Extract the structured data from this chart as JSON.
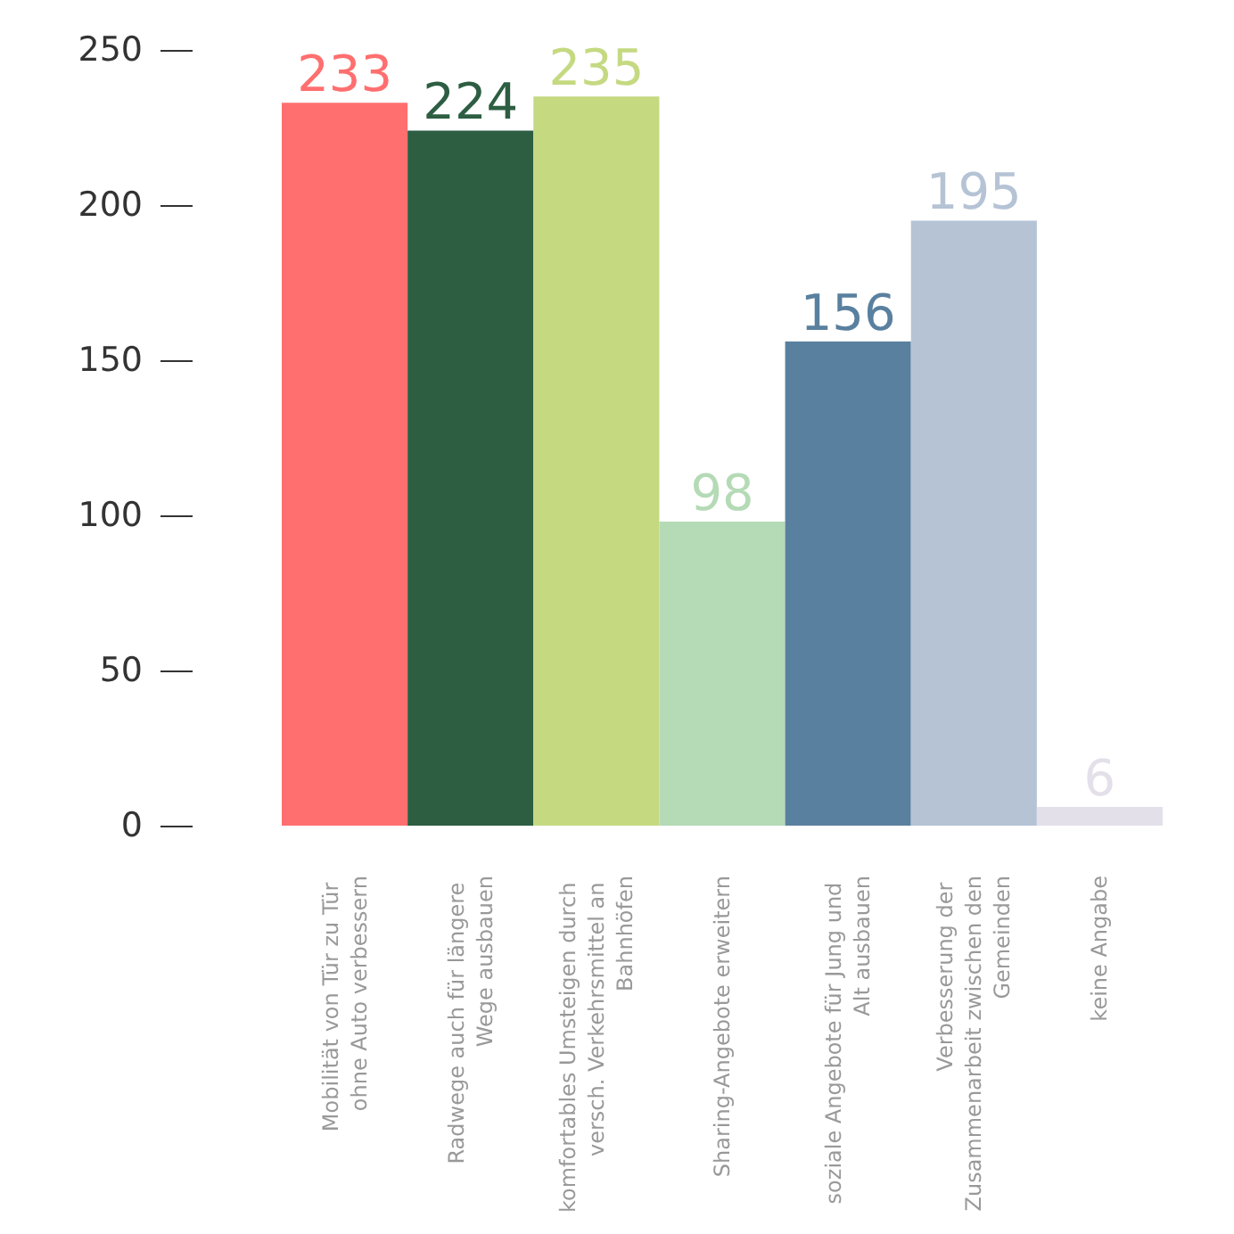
{
  "chart_data": {
    "type": "bar",
    "categories": [
      "Mobilität von Tür zu Tür ohne Auto verbessern",
      "Radwege auch für längere Wege ausbauen",
      "komfortables Umsteigen durch versch. Verkehrsmittel an Bahnhöfen",
      "Sharing-Angebote erweitern",
      "soziale Angebote für Jung und Alt ausbauen",
      "Verbesserung der Zusammenarbeit zwischen den Gemeinden",
      "keine Angabe"
    ],
    "values": [
      233,
      224,
      235,
      98,
      156,
      195,
      6
    ],
    "colors": [
      "#ff6f6f",
      "#2d5e42",
      "#c5d981",
      "#b5dab6",
      "#5a809f",
      "#b5c3d5",
      "#e4e0ea"
    ],
    "ylim": [
      0,
      250
    ],
    "yticks": [
      0,
      50,
      100,
      150,
      200,
      250
    ],
    "grid": false,
    "data_labels": true
  }
}
